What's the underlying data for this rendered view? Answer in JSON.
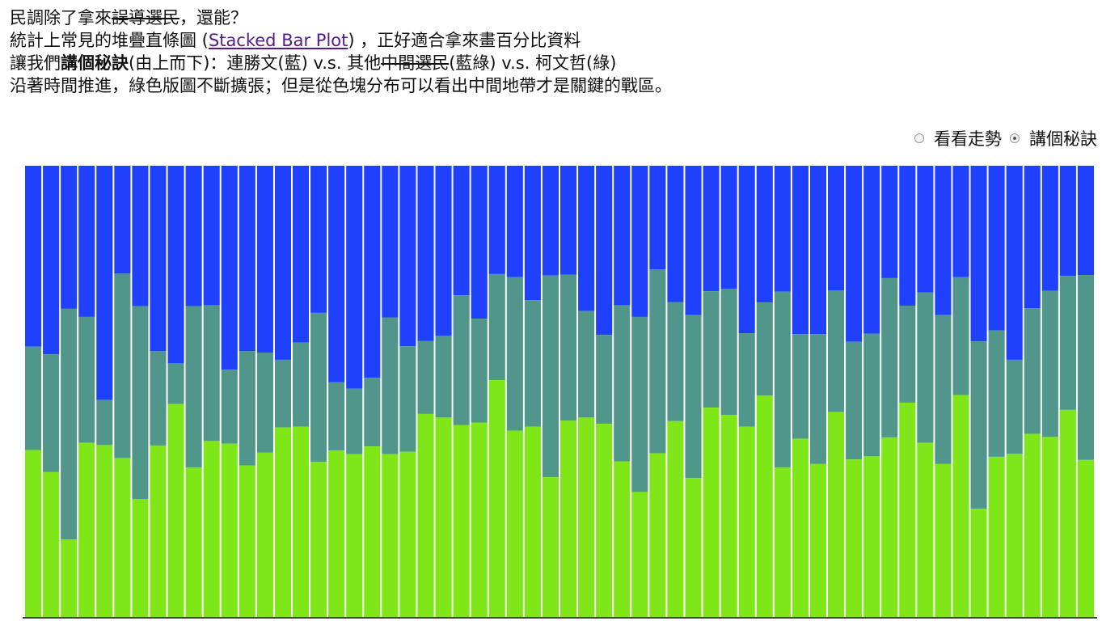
{
  "intro": {
    "l1_a": "民調除了拿來",
    "l1_strike": "誤導選民",
    "l1_b": "，還能？",
    "l2_a": "統計上常見的堆疊直條圖 (",
    "l2_link": "Stacked Bar Plot",
    "l2_b": ") ，正好適合拿來畫百分比資料",
    "l3_a": "讓我們",
    "l3_bold": "講個秘訣",
    "l3_b": "(由上而下)：連勝文(藍) v.s. 其他",
    "l3_strike": "中間選民",
    "l3_c": "(藍綠) v.s. 柯文哲(綠)",
    "l4": "沿著時間推進，綠色版圖不斷擴張；但是從色塊分布可以看出中間地帶才是關鍵的戰區。"
  },
  "controls": {
    "option_trend": "看看走勢",
    "option_secret": "講個秘訣",
    "selected": "option_secret"
  },
  "chart_data": {
    "type": "bar",
    "stacked": true,
    "normalized": true,
    "ylim": [
      0,
      100
    ],
    "grid": false,
    "legend": "none",
    "colors": {
      "blue": "#1f41fe",
      "middle": "#50968a",
      "green": "#7fe617"
    },
    "series": [
      {
        "key": "blue",
        "values": [
          40.1,
          41.8,
          31.7,
          33.5,
          51.9,
          23.9,
          31.1,
          41.1,
          43.8,
          31.1,
          30.9,
          45.2,
          41.1,
          41.4,
          43.0,
          39.2,
          32.6,
          48.0,
          49.4,
          47.0,
          33.6,
          40.0,
          38.8,
          37.7,
          28.7,
          33.9,
          24.0,
          24.7,
          29.8,
          24.3,
          24.1,
          32.2,
          37.5,
          30.9,
          33.5,
          23.0,
          30.2,
          33.1,
          27.8,
          27.3,
          37.1,
          30.3,
          27.9,
          37.3,
          37.3,
          27.6,
          39.0,
          37.2,
          24.9,
          31.0,
          28.1,
          33.1,
          24.7,
          38.9,
          36.5,
          43.0,
          31.6,
          27.7,
          24.4,
          24.2
        ]
      },
      {
        "key": "middle",
        "values": [
          22.9,
          26.1,
          51.1,
          27.9,
          10.0,
          40.9,
          42.8,
          20.9,
          9.0,
          35.8,
          30.1,
          16.4,
          25.3,
          22.2,
          15.0,
          18.6,
          33.0,
          15.1,
          14.5,
          15.2,
          30.3,
          23.4,
          16.2,
          18.1,
          28.8,
          23.0,
          23.5,
          34.0,
          28.0,
          44.7,
          32.4,
          23.6,
          19.7,
          34.6,
          38.8,
          40.7,
          26.4,
          36.1,
          25.8,
          27.9,
          20.7,
          20.6,
          39.0,
          23.2,
          28.8,
          27.0,
          26.1,
          27.2,
          35.3,
          21.5,
          33.3,
          33.0,
          26.1,
          37.1,
          28.0,
          20.8,
          27.8,
          32.4,
          29.7,
          41.0
        ]
      },
      {
        "key": "green",
        "values": [
          37.0,
          32.1,
          17.2,
          38.6,
          38.1,
          35.2,
          26.1,
          38.0,
          47.2,
          33.1,
          39.0,
          38.4,
          33.6,
          36.4,
          42.0,
          42.2,
          34.4,
          36.9,
          36.1,
          37.8,
          36.1,
          36.6,
          45.0,
          44.2,
          42.5,
          43.1,
          52.5,
          41.3,
          42.2,
          31.0,
          43.5,
          44.2,
          42.8,
          34.5,
          27.7,
          36.3,
          43.4,
          30.8,
          46.4,
          44.8,
          42.2,
          49.1,
          33.1,
          39.5,
          33.9,
          45.4,
          34.9,
          35.6,
          39.8,
          47.5,
          38.6,
          33.9,
          49.2,
          24.0,
          35.5,
          36.2,
          40.6,
          39.9,
          45.9,
          34.8
        ]
      }
    ]
  }
}
